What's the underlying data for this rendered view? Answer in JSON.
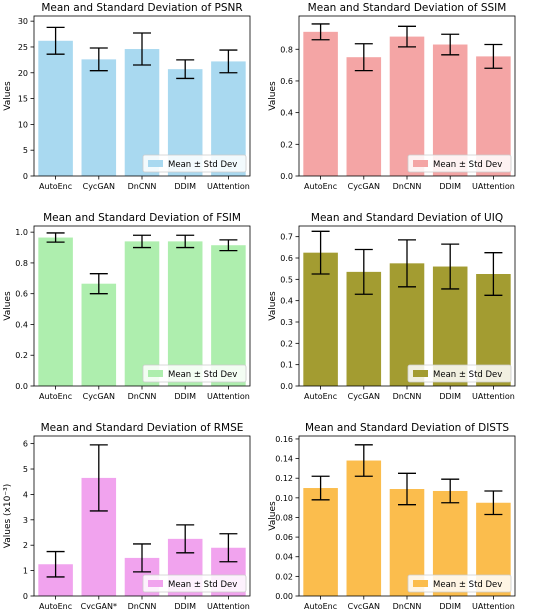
{
  "legend_label": "Mean ± Std Dev",
  "chart_data": [
    {
      "type": "bar",
      "title": "Mean and Standard Deviation of PSNR",
      "ylabel": "Values",
      "xlabel": "",
      "categories": [
        "AutoEnc",
        "CycGAN",
        "DnCNN",
        "DDIM",
        "UAttention"
      ],
      "values": [
        26.2,
        22.6,
        24.6,
        20.7,
        22.2
      ],
      "std": [
        2.6,
        2.2,
        3.1,
        1.8,
        2.2
      ],
      "ylim": [
        0,
        31
      ],
      "yticks": [
        0,
        5,
        10,
        15,
        20,
        25,
        30
      ],
      "yticklabels": [
        "0",
        "5",
        "10",
        "15",
        "20",
        "25",
        "30"
      ],
      "color": "#a9d9f0",
      "legend": "bottom-right",
      "grid": false
    },
    {
      "type": "bar",
      "title": "Mean and Standard Deviation of SSIM",
      "ylabel": "Values",
      "xlabel": "",
      "categories": [
        "AutoEnc",
        "CycGAN",
        "DnCNN",
        "DDIM",
        "UAttention"
      ],
      "values": [
        0.91,
        0.75,
        0.88,
        0.83,
        0.755
      ],
      "std": [
        0.05,
        0.085,
        0.065,
        0.065,
        0.075
      ],
      "ylim": [
        0,
        1.01
      ],
      "yticks": [
        0,
        0.2,
        0.4,
        0.6,
        0.8
      ],
      "yticklabels": [
        "0.0",
        "0.2",
        "0.4",
        "0.6",
        "0.8"
      ],
      "color": "#f4a5a5",
      "legend": "bottom-right",
      "grid": false
    },
    {
      "type": "bar",
      "title": "Mean and Standard Deviation of FSIM",
      "ylabel": "Values",
      "xlabel": "",
      "categories": [
        "AutoEnc",
        "CycGAN",
        "DnCNN",
        "DDIM",
        "UAttention"
      ],
      "values": [
        0.965,
        0.665,
        0.94,
        0.94,
        0.915
      ],
      "std": [
        0.03,
        0.065,
        0.04,
        0.04,
        0.035
      ],
      "ylim": [
        0,
        1.04
      ],
      "yticks": [
        0,
        0.2,
        0.4,
        0.6,
        0.8,
        1.0
      ],
      "yticklabels": [
        "0.0",
        "0.2",
        "0.4",
        "0.6",
        "0.8",
        "1.0"
      ],
      "color": "#aeeeae",
      "legend": "bottom-right",
      "grid": false
    },
    {
      "type": "bar",
      "title": "Mean and Standard Deviation of UIQ",
      "ylabel": "Values",
      "xlabel": "",
      "categories": [
        "AutoEnc",
        "CycGAN",
        "DnCNN",
        "DDIM",
        "UAttention"
      ],
      "values": [
        0.625,
        0.535,
        0.575,
        0.56,
        0.525
      ],
      "std": [
        0.1,
        0.105,
        0.11,
        0.105,
        0.1
      ],
      "ylim": [
        0,
        0.75
      ],
      "yticks": [
        0,
        0.1,
        0.2,
        0.3,
        0.4,
        0.5,
        0.6,
        0.7
      ],
      "yticklabels": [
        "0.0",
        "0.1",
        "0.2",
        "0.3",
        "0.4",
        "0.5",
        "0.6",
        "0.7"
      ],
      "color": "#a39c31",
      "legend": "bottom-right",
      "grid": false
    },
    {
      "type": "bar",
      "title": "Mean and Standard Deviation of RMSE",
      "ylabel": "Values (x10⁻³)",
      "xlabel": "",
      "categories": [
        "AutoEnc",
        "CycGAN*",
        "DnCNN",
        "DDIM",
        "UAttention"
      ],
      "values": [
        1.25,
        4.65,
        1.5,
        2.25,
        1.9
      ],
      "std": [
        0.5,
        1.3,
        0.55,
        0.55,
        0.55
      ],
      "ylim": [
        0,
        6.3
      ],
      "yticks": [
        0,
        1,
        2,
        3,
        4,
        5,
        6
      ],
      "yticklabels": [
        "0",
        "1",
        "2",
        "3",
        "4",
        "5",
        "6"
      ],
      "color": "#f1a3ee",
      "legend": "bottom-right",
      "grid": false
    },
    {
      "type": "bar",
      "title": "Mean and Standard Deviation of DISTS",
      "ylabel": "Values",
      "xlabel": "",
      "categories": [
        "AutoEnc",
        "CycGAN",
        "DnCNN",
        "DDIM",
        "UAttention"
      ],
      "values": [
        0.11,
        0.138,
        0.109,
        0.107,
        0.095
      ],
      "std": [
        0.012,
        0.016,
        0.016,
        0.012,
        0.012
      ],
      "ylim": [
        0,
        0.163
      ],
      "yticks": [
        0,
        0.02,
        0.04,
        0.06,
        0.08,
        0.1,
        0.12,
        0.14,
        0.16
      ],
      "yticklabels": [
        "0.00",
        "0.02",
        "0.04",
        "0.06",
        "0.08",
        "0.10",
        "0.12",
        "0.14",
        "0.16"
      ],
      "color": "#fbbd4d",
      "legend": "bottom-right",
      "grid": false
    }
  ]
}
